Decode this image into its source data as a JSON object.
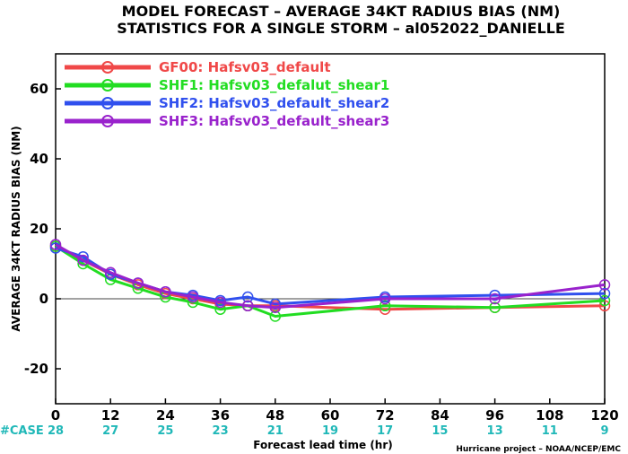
{
  "title_line1": "MODEL FORECAST – AVERAGE 34KT RADIUS BIAS (NM)",
  "title_line2": "STATISTICS FOR A SINGLE STORM – al052022_DANIELLE",
  "credit": "Hurricane project – NOAA/NCEP/EMC",
  "case_label": "#CASE",
  "cases": [
    "28",
    "27",
    "25",
    "23",
    "21",
    "19",
    "17",
    "15",
    "13",
    "11",
    "9"
  ],
  "chart_data": {
    "type": "line",
    "xlabel": "Forecast lead time (hr)",
    "ylabel": "AVERAGE 34KT RADIUS BIAS (NM)",
    "xlim": [
      0,
      120
    ],
    "ylim": [
      -30,
      70
    ],
    "xticks": [
      0,
      12,
      24,
      36,
      48,
      60,
      72,
      84,
      96,
      108,
      120
    ],
    "yticks": [
      -20,
      0,
      20,
      40,
      60
    ],
    "grid": false,
    "legend": "top-left",
    "reference_line": 0,
    "series": [
      {
        "name": "GF00: Hafsv03_default",
        "color": "#f04848",
        "x": [
          0,
          6,
          12,
          18,
          24,
          30,
          36,
          42,
          48,
          72,
          96,
          120
        ],
        "y": [
          15,
          11,
          7,
          4,
          1.5,
          0,
          -1.5,
          -2,
          -2,
          -3,
          -2.5,
          -2
        ]
      },
      {
        "name": "SHF1: Hafsv03_defalut_shear1",
        "color": "#22dd22",
        "x": [
          0,
          6,
          12,
          18,
          24,
          30,
          36,
          42,
          48,
          72,
          96,
          120
        ],
        "y": [
          15,
          10,
          5.5,
          3,
          0.5,
          -1,
          -3,
          -2,
          -5,
          -2,
          -2.5,
          -0.5
        ]
      },
      {
        "name": "SHF2: Hafsv03_default_shear2",
        "color": "#3050ee",
        "x": [
          0,
          6,
          12,
          18,
          24,
          30,
          36,
          42,
          48,
          72,
          96,
          120
        ],
        "y": [
          14.5,
          12,
          7,
          4.5,
          2,
          1,
          -0.5,
          0.5,
          -1.5,
          0.5,
          1,
          1.5
        ]
      },
      {
        "name": "SHF3: Hafsv03_default_shear3",
        "color": "#9922cc",
        "x": [
          0,
          6,
          12,
          18,
          24,
          30,
          36,
          42,
          48,
          72,
          96,
          120
        ],
        "y": [
          15.5,
          11,
          7.5,
          4.5,
          2,
          0.5,
          -1,
          -2,
          -2.5,
          0,
          0,
          4
        ]
      }
    ]
  }
}
